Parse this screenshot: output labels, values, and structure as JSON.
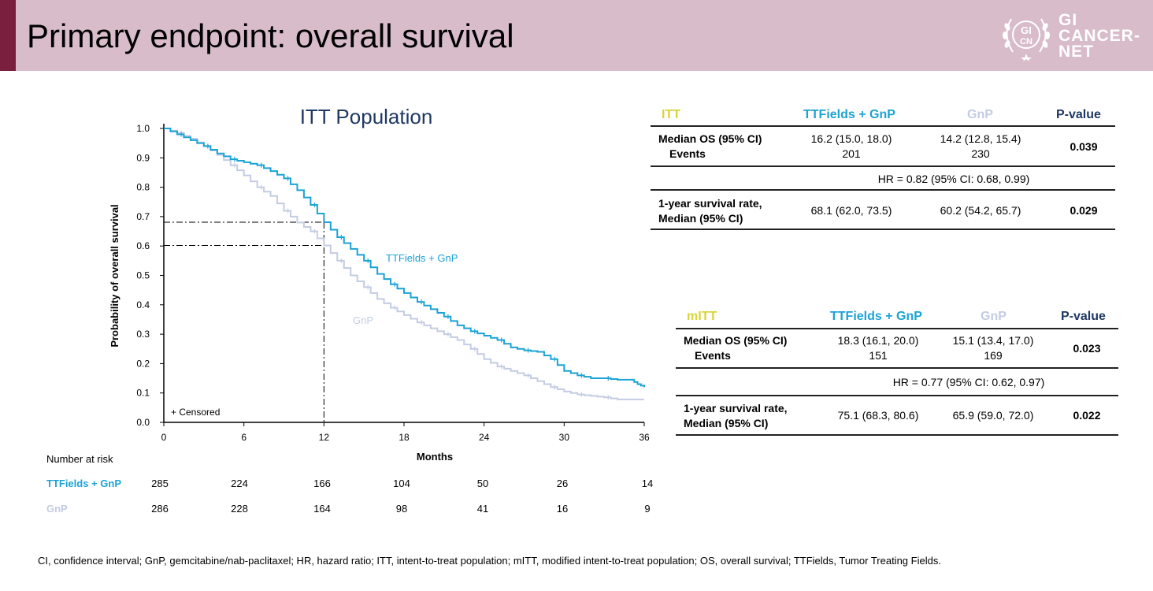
{
  "slide": {
    "title": "Primary endpoint: overall survival",
    "logo": {
      "badge_top": "GI",
      "badge_bottom": "CN",
      "line1": "GI",
      "line2": "CANCER-",
      "line3": "NET"
    }
  },
  "colors": {
    "ttfields": "#1ba3d6",
    "gnp": "#c3cce3",
    "itt_label": "#d9d33b",
    "header_band": "#d8bcc9",
    "header_accent": "#7a1f3d"
  },
  "chart_data": {
    "type": "line",
    "subtype": "kaplan-meier",
    "title": "ITT Population",
    "xlabel": "Months",
    "ylabel": "Probability of overall survival",
    "xlim": [
      0,
      36
    ],
    "ylim": [
      0,
      1
    ],
    "xticks": [
      0,
      6,
      12,
      18,
      24,
      30,
      36
    ],
    "yticks": [
      "0.0",
      "0.1",
      "0.2",
      "0.3",
      "0.4",
      "0.5",
      "0.6",
      "0.7",
      "0.8",
      "0.9",
      "1.0"
    ],
    "censored_note": "+ Censored",
    "reference_lines": [
      {
        "x": 12,
        "y": 0.681
      },
      {
        "x": 12,
        "y": 0.602
      }
    ],
    "series": [
      {
        "name": "TTFields + GnP",
        "color": "#1ba3d6",
        "points": [
          [
            0,
            1.0
          ],
          [
            1,
            0.98
          ],
          [
            2,
            0.96
          ],
          [
            3,
            0.94
          ],
          [
            4,
            0.915
          ],
          [
            5,
            0.895
          ],
          [
            6,
            0.885
          ],
          [
            7,
            0.875
          ],
          [
            8,
            0.855
          ],
          [
            9,
            0.83
          ],
          [
            10,
            0.79
          ],
          [
            11,
            0.74
          ],
          [
            12,
            0.681
          ],
          [
            13,
            0.63
          ],
          [
            14,
            0.59
          ],
          [
            15,
            0.55
          ],
          [
            16,
            0.505
          ],
          [
            17,
            0.47
          ],
          [
            18,
            0.44
          ],
          [
            19,
            0.41
          ],
          [
            20,
            0.385
          ],
          [
            21,
            0.36
          ],
          [
            22,
            0.33
          ],
          [
            23,
            0.31
          ],
          [
            24,
            0.295
          ],
          [
            25,
            0.28
          ],
          [
            26,
            0.255
          ],
          [
            27,
            0.245
          ],
          [
            28,
            0.24
          ],
          [
            29,
            0.215
          ],
          [
            30,
            0.175
          ],
          [
            31,
            0.16
          ],
          [
            32,
            0.15
          ],
          [
            33,
            0.15
          ],
          [
            34,
            0.145
          ],
          [
            35,
            0.145
          ],
          [
            35.5,
            0.13
          ],
          [
            36,
            0.12
          ]
        ]
      },
      {
        "name": "GnP",
        "color": "#c3cce3",
        "points": [
          [
            0,
            1.0
          ],
          [
            1,
            0.985
          ],
          [
            2,
            0.965
          ],
          [
            3,
            0.94
          ],
          [
            4,
            0.91
          ],
          [
            5,
            0.875
          ],
          [
            6,
            0.84
          ],
          [
            7,
            0.8
          ],
          [
            8,
            0.77
          ],
          [
            9,
            0.72
          ],
          [
            10,
            0.68
          ],
          [
            11,
            0.65
          ],
          [
            12,
            0.602
          ],
          [
            13,
            0.55
          ],
          [
            14,
            0.5
          ],
          [
            15,
            0.46
          ],
          [
            16,
            0.42
          ],
          [
            17,
            0.39
          ],
          [
            18,
            0.365
          ],
          [
            19,
            0.34
          ],
          [
            20,
            0.32
          ],
          [
            21,
            0.3
          ],
          [
            22,
            0.28
          ],
          [
            23,
            0.25
          ],
          [
            24,
            0.215
          ],
          [
            25,
            0.19
          ],
          [
            26,
            0.175
          ],
          [
            27,
            0.16
          ],
          [
            28,
            0.14
          ],
          [
            29,
            0.12
          ],
          [
            30,
            0.105
          ],
          [
            31,
            0.095
          ],
          [
            32,
            0.09
          ],
          [
            33,
            0.085
          ],
          [
            34,
            0.078
          ],
          [
            35,
            0.078
          ],
          [
            36,
            0.078
          ]
        ]
      }
    ],
    "series_labels": [
      "TTFields + GnP",
      "GnP"
    ],
    "risk_table": {
      "title": "Number at risk",
      "rows": [
        {
          "label": "TTFields + GnP",
          "values": [
            "285",
            "224",
            "166",
            "104",
            "50",
            "26",
            "14"
          ]
        },
        {
          "label": "GnP",
          "values": [
            "286",
            "228",
            "164",
            "98",
            "41",
            "16",
            "9"
          ]
        }
      ]
    }
  },
  "itt_table": {
    "header": [
      "ITT",
      "TTFields + GnP",
      "GnP",
      "P-value"
    ],
    "row1": {
      "label1": "Median OS (95% CI)",
      "label2": "Events",
      "a1": "16.2 (15.0, 18.0)",
      "a2": "201",
      "b1": "14.2 (12.8, 15.4)",
      "b2": "230",
      "p": "0.039"
    },
    "hr": "HR = 0.82 (95% CI: 0.68, 0.99)",
    "row2": {
      "label1": "1-year survival rate,",
      "label2": "Median (95% CI)",
      "a": "68.1 (62.0, 73.5)",
      "b": "60.2 (54.2, 65.7)",
      "p": "0.029"
    }
  },
  "mitt_table": {
    "header": [
      "mITT",
      "TTFields + GnP",
      "GnP",
      "P-value"
    ],
    "row1": {
      "label1": "Median OS (95% CI)",
      "label2": "Events",
      "a1": "18.3 (16.1, 20.0)",
      "a2": "151",
      "b1": "15.1 (13.4, 17.0)",
      "b2": "169",
      "p": "0.023"
    },
    "hr": "HR = 0.77 (95% CI: 0.62, 0.97)",
    "row2": {
      "label1": "1-year survival rate,",
      "label2": "Median (95% CI)",
      "a": "75.1 (68.3, 80.6)",
      "b": "65.9 (59.0, 72.0)",
      "p": "0.022"
    }
  },
  "footnote": "CI, confidence interval; GnP, gemcitabine/nab-paclitaxel; HR, hazard ratio; ITT, intent-to-treat population; mITT, modified intent-to-treat population; OS, overall survival; TTFields, Tumor Treating Fields."
}
